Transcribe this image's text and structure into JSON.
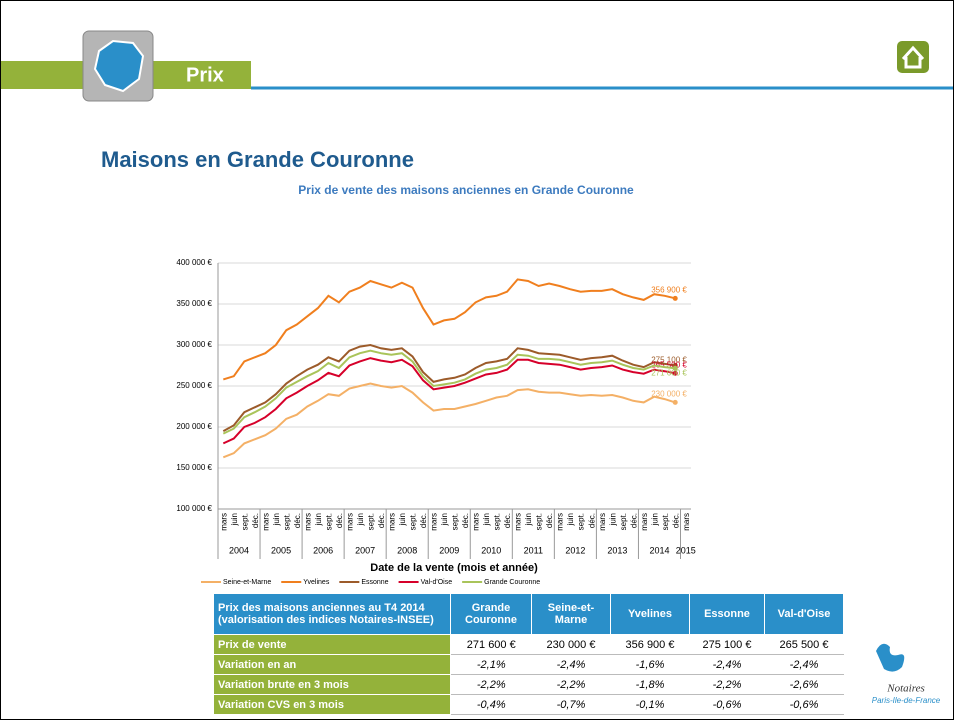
{
  "header": {
    "section": "Prix",
    "title": "Maisons en Grande Couronne"
  },
  "chart_data": {
    "type": "line",
    "title": "Prix de vente des maisons anciennes en Grande Couronne",
    "x_label": "Date de la vente (mois et année)",
    "categories": [
      "mars",
      "juin",
      "sept.",
      "déc.",
      "mars",
      "juin",
      "sept.",
      "déc.",
      "mars",
      "juin",
      "sept.",
      "déc.",
      "mars",
      "juin",
      "sept.",
      "déc.",
      "mars",
      "juin",
      "sept.",
      "déc.",
      "mars",
      "juin",
      "sept.",
      "déc.",
      "mars",
      "juin",
      "sept.",
      "déc.",
      "mars",
      "juin",
      "sept.",
      "déc.",
      "mars",
      "juin",
      "sept.",
      "déc.",
      "mars",
      "juin",
      "sept.",
      "déc.",
      "mars",
      "juin",
      "sept.",
      "déc.",
      "mars"
    ],
    "years": [
      "2004",
      "2005",
      "2006",
      "2007",
      "2008",
      "2009",
      "2010",
      "2011",
      "2012",
      "2013",
      "2014",
      "2015"
    ],
    "ylim": [
      100000,
      400000
    ],
    "yticks": [
      {
        "value": 100000,
        "label": "100 000 €"
      },
      {
        "value": 150000,
        "label": "150 000 €"
      },
      {
        "value": 200000,
        "label": "200 000 €"
      },
      {
        "value": 250000,
        "label": "250 000 €"
      },
      {
        "value": 300000,
        "label": "300 000 €"
      },
      {
        "value": 350000,
        "label": "350 000 €"
      },
      {
        "value": 400000,
        "label": "400 000 €"
      }
    ],
    "grid": true,
    "legend": "bottom",
    "series": [
      {
        "name": "Seine-et-Marne",
        "color": "#f4b066",
        "end_label": "230 000 €",
        "values": [
          163000,
          168000,
          180000,
          185000,
          190000,
          198000,
          210000,
          215000,
          225000,
          232000,
          240000,
          238000,
          247000,
          250000,
          253000,
          250000,
          248000,
          250000,
          242000,
          230000,
          220000,
          222000,
          222000,
          225000,
          228000,
          232000,
          236000,
          238000,
          245000,
          246000,
          243000,
          242000,
          242000,
          240000,
          238000,
          239000,
          238000,
          239000,
          236000,
          232000,
          230000,
          237000,
          234000,
          230000,
          null
        ]
      },
      {
        "name": "Yvelines",
        "color": "#f07f1e",
        "end_label": "356 900 €",
        "values": [
          258000,
          262000,
          280000,
          285000,
          290000,
          300000,
          318000,
          325000,
          335000,
          345000,
          360000,
          352000,
          365000,
          370000,
          378000,
          374000,
          370000,
          376000,
          370000,
          345000,
          325000,
          330000,
          332000,
          340000,
          352000,
          358000,
          360000,
          365000,
          380000,
          378000,
          372000,
          375000,
          372000,
          368000,
          365000,
          366000,
          366000,
          368000,
          362000,
          358000,
          355000,
          362000,
          360000,
          356900,
          null
        ]
      },
      {
        "name": "Essonne",
        "color": "#9c5b2a",
        "end_label": "275 100 €",
        "values": [
          195000,
          202000,
          218000,
          224000,
          230000,
          240000,
          253000,
          262000,
          270000,
          276000,
          285000,
          280000,
          293000,
          298000,
          300000,
          296000,
          294000,
          296000,
          286000,
          267000,
          255000,
          258000,
          260000,
          264000,
          272000,
          278000,
          280000,
          283000,
          296000,
          294000,
          290000,
          289000,
          288000,
          285000,
          282000,
          284000,
          285000,
          287000,
          281000,
          276000,
          273000,
          279000,
          277000,
          275100,
          null
        ]
      },
      {
        "name": "Val-d'Oise",
        "color": "#d6002a",
        "end_label": "265 500 €",
        "values": [
          180000,
          186000,
          200000,
          205000,
          212000,
          222000,
          235000,
          242000,
          250000,
          257000,
          266000,
          262000,
          275000,
          280000,
          284000,
          281000,
          279000,
          282000,
          274000,
          257000,
          246000,
          248000,
          250000,
          254000,
          259000,
          264000,
          266000,
          270000,
          282000,
          282000,
          278000,
          277000,
          276000,
          273000,
          270000,
          272000,
          273000,
          275000,
          270000,
          267000,
          265000,
          270000,
          268000,
          265500,
          null
        ]
      },
      {
        "name": "Grande Couronne",
        "color": "#a9c45a",
        "end_label": "271 600 €",
        "values": [
          192000,
          198000,
          212000,
          218000,
          225000,
          235000,
          248000,
          255000,
          262000,
          268000,
          278000,
          272000,
          285000,
          290000,
          293000,
          290000,
          288000,
          290000,
          280000,
          262000,
          250000,
          252000,
          254000,
          258000,
          265000,
          270000,
          272000,
          276000,
          288000,
          287000,
          283000,
          283000,
          282000,
          279000,
          276000,
          278000,
          279000,
          281000,
          276000,
          272000,
          270000,
          275000,
          273000,
          271600,
          null
        ]
      }
    ]
  },
  "table": {
    "header": [
      "Prix des maisons anciennes au T4 2014 (valorisation des indices Notaires-INSEE)",
      "Grande Couronne",
      "Seine-et-Marne",
      "Yvelines",
      "Essonne",
      "Val-d'Oise"
    ],
    "rows": [
      [
        "Prix de vente",
        "271 600 €",
        "230 000 €",
        "356 900 €",
        "275 100 €",
        "265 500 €"
      ],
      [
        "Variation en an",
        "-2,1%",
        "-2,4%",
        "-1,6%",
        "-2,4%",
        "-2,4%"
      ],
      [
        "Variation brute en 3 mois",
        "-2,2%",
        "-2,2%",
        "-1,8%",
        "-2,2%",
        "-2,6%"
      ],
      [
        "Variation CVS en 3 mois",
        "-0,4%",
        "-0,7%",
        "-0,1%",
        "-0,6%",
        "-0,6%"
      ]
    ]
  },
  "logo": {
    "name": "Notaires",
    "region": "Paris-Ile-de-France"
  }
}
